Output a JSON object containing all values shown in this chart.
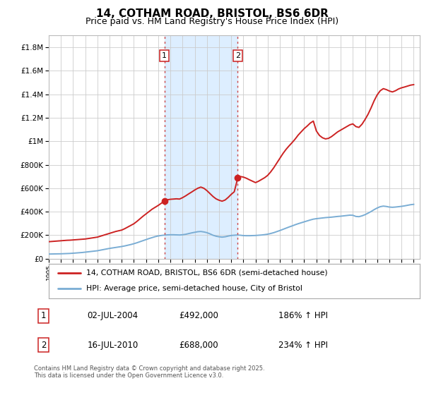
{
  "title": "14, COTHAM ROAD, BRISTOL, BS6 6DR",
  "subtitle": "Price paid vs. HM Land Registry's House Price Index (HPI)",
  "title_fontsize": 11,
  "subtitle_fontsize": 9,
  "ylim": [
    0,
    1900000
  ],
  "yticks": [
    0,
    200000,
    400000,
    600000,
    800000,
    1000000,
    1200000,
    1400000,
    1600000,
    1800000
  ],
  "ytick_labels": [
    "£0",
    "£200K",
    "£400K",
    "£600K",
    "£800K",
    "£1M",
    "£1.2M",
    "£1.4M",
    "£1.6M",
    "£1.8M"
  ],
  "xlim_start": 1995.0,
  "xlim_end": 2025.5,
  "grid_color": "#cccccc",
  "sale1_x": 2004.5,
  "sale1_y": 492000,
  "sale2_x": 2010.54,
  "sale2_y": 688000,
  "sale1_label": "1",
  "sale2_label": "2",
  "shaded_region_color": "#ddeeff",
  "vline_color": "#cc4444",
  "property_line_color": "#cc2222",
  "hpi_line_color": "#7aadd4",
  "legend_label_property": "14, COTHAM ROAD, BRISTOL, BS6 6DR (semi-detached house)",
  "legend_label_hpi": "HPI: Average price, semi-detached house, City of Bristol",
  "table_row1": [
    "1",
    "02-JUL-2004",
    "£492,000",
    "186% ↑ HPI"
  ],
  "table_row2": [
    "2",
    "16-JUL-2010",
    "£688,000",
    "234% ↑ HPI"
  ],
  "footnote": "Contains HM Land Registry data © Crown copyright and database right 2025.\nThis data is licensed under the Open Government Licence v3.0.",
  "hpi_data_x": [
    1995.0,
    1995.25,
    1995.5,
    1995.75,
    1996.0,
    1996.25,
    1996.5,
    1996.75,
    1997.0,
    1997.25,
    1997.5,
    1997.75,
    1998.0,
    1998.25,
    1998.5,
    1998.75,
    1999.0,
    1999.25,
    1999.5,
    1999.75,
    2000.0,
    2000.25,
    2000.5,
    2000.75,
    2001.0,
    2001.25,
    2001.5,
    2001.75,
    2002.0,
    2002.25,
    2002.5,
    2002.75,
    2003.0,
    2003.25,
    2003.5,
    2003.75,
    2004.0,
    2004.25,
    2004.5,
    2004.75,
    2005.0,
    2005.25,
    2005.5,
    2005.75,
    2006.0,
    2006.25,
    2006.5,
    2006.75,
    2007.0,
    2007.25,
    2007.5,
    2007.75,
    2008.0,
    2008.25,
    2008.5,
    2008.75,
    2009.0,
    2009.25,
    2009.5,
    2009.75,
    2010.0,
    2010.25,
    2010.5,
    2010.75,
    2011.0,
    2011.25,
    2011.5,
    2011.75,
    2012.0,
    2012.25,
    2012.5,
    2012.75,
    2013.0,
    2013.25,
    2013.5,
    2013.75,
    2014.0,
    2014.25,
    2014.5,
    2014.75,
    2015.0,
    2015.25,
    2015.5,
    2015.75,
    2016.0,
    2016.25,
    2016.5,
    2016.75,
    2017.0,
    2017.25,
    2017.5,
    2017.75,
    2018.0,
    2018.25,
    2018.5,
    2018.75,
    2019.0,
    2019.25,
    2019.5,
    2019.75,
    2020.0,
    2020.25,
    2020.5,
    2020.75,
    2021.0,
    2021.25,
    2021.5,
    2021.75,
    2022.0,
    2022.25,
    2022.5,
    2022.75,
    2023.0,
    2023.25,
    2023.5,
    2023.75,
    2024.0,
    2024.25,
    2024.5,
    2024.75,
    2025.0
  ],
  "hpi_data_y": [
    40000,
    40500,
    41000,
    41500,
    42000,
    43000,
    44000,
    45000,
    47000,
    49000,
    51000,
    53000,
    56000,
    59000,
    62000,
    65000,
    68000,
    73000,
    78000,
    83000,
    88000,
    92000,
    96000,
    100000,
    104000,
    109000,
    115000,
    121000,
    128000,
    136000,
    145000,
    154000,
    163000,
    172000,
    180000,
    188000,
    194000,
    198000,
    201000,
    203000,
    204000,
    204000,
    203000,
    202000,
    204000,
    208000,
    214000,
    220000,
    225000,
    230000,
    232000,
    228000,
    222000,
    212000,
    200000,
    192000,
    187000,
    184000,
    187000,
    193000,
    198000,
    200000,
    202000,
    200000,
    197000,
    196000,
    196000,
    197000,
    198000,
    200000,
    202000,
    205000,
    209000,
    215000,
    222000,
    231000,
    240000,
    250000,
    260000,
    270000,
    279000,
    289000,
    298000,
    306000,
    314000,
    322000,
    330000,
    337000,
    341000,
    344000,
    347000,
    350000,
    352000,
    354000,
    357000,
    360000,
    362000,
    365000,
    368000,
    371000,
    370000,
    360000,
    358000,
    365000,
    375000,
    388000,
    402000,
    418000,
    432000,
    443000,
    448000,
    445000,
    440000,
    438000,
    440000,
    443000,
    446000,
    450000,
    455000,
    460000,
    463000
  ],
  "prop_data_x": [
    1995.0,
    1995.25,
    1995.5,
    1995.75,
    1996.0,
    1996.25,
    1996.5,
    1996.75,
    1997.0,
    1997.25,
    1997.5,
    1997.75,
    1998.0,
    1998.25,
    1998.5,
    1998.75,
    1999.0,
    1999.25,
    1999.5,
    1999.75,
    2000.0,
    2000.25,
    2000.5,
    2000.75,
    2001.0,
    2001.25,
    2001.5,
    2001.75,
    2002.0,
    2002.25,
    2002.5,
    2002.75,
    2003.0,
    2003.25,
    2003.5,
    2003.75,
    2004.0,
    2004.25,
    2004.5,
    2004.75,
    2005.0,
    2005.25,
    2005.5,
    2005.75,
    2006.0,
    2006.25,
    2006.5,
    2006.75,
    2007.0,
    2007.25,
    2007.5,
    2007.75,
    2008.0,
    2008.25,
    2008.5,
    2008.75,
    2009.0,
    2009.25,
    2009.5,
    2009.75,
    2010.0,
    2010.25,
    2010.54,
    2010.75,
    2011.0,
    2011.25,
    2011.5,
    2011.75,
    2012.0,
    2012.25,
    2012.5,
    2012.75,
    2013.0,
    2013.25,
    2013.5,
    2013.75,
    2014.0,
    2014.25,
    2014.5,
    2014.75,
    2015.0,
    2015.25,
    2015.5,
    2015.75,
    2016.0,
    2016.25,
    2016.5,
    2016.75,
    2017.0,
    2017.25,
    2017.5,
    2017.75,
    2018.0,
    2018.25,
    2018.5,
    2018.75,
    2019.0,
    2019.25,
    2019.5,
    2019.75,
    2020.0,
    2020.25,
    2020.5,
    2020.75,
    2021.0,
    2021.25,
    2021.5,
    2021.75,
    2022.0,
    2022.25,
    2022.5,
    2022.75,
    2023.0,
    2023.25,
    2023.5,
    2023.75,
    2024.0,
    2024.25,
    2024.5,
    2024.75,
    2025.0
  ],
  "prop_data_y": [
    145000,
    147000,
    149000,
    151000,
    153000,
    155000,
    157000,
    158000,
    160000,
    162000,
    164000,
    166000,
    168000,
    172000,
    176000,
    180000,
    184000,
    192000,
    200000,
    208000,
    216000,
    224000,
    232000,
    238000,
    244000,
    256000,
    270000,
    284000,
    298000,
    318000,
    340000,
    362000,
    382000,
    402000,
    422000,
    438000,
    454000,
    472000,
    492000,
    502000,
    506000,
    508000,
    510000,
    508000,
    520000,
    535000,
    552000,
    568000,
    585000,
    600000,
    610000,
    600000,
    580000,
    555000,
    530000,
    510000,
    498000,
    490000,
    500000,
    522000,
    548000,
    570000,
    688000,
    700000,
    695000,
    685000,
    672000,
    660000,
    648000,
    660000,
    675000,
    690000,
    710000,
    740000,
    775000,
    815000,
    855000,
    895000,
    930000,
    960000,
    988000,
    1018000,
    1052000,
    1080000,
    1108000,
    1130000,
    1155000,
    1172000,
    1088000,
    1050000,
    1030000,
    1020000,
    1025000,
    1040000,
    1060000,
    1080000,
    1095000,
    1110000,
    1125000,
    1140000,
    1148000,
    1125000,
    1118000,
    1145000,
    1185000,
    1230000,
    1285000,
    1345000,
    1395000,
    1430000,
    1448000,
    1440000,
    1428000,
    1420000,
    1430000,
    1445000,
    1455000,
    1462000,
    1470000,
    1478000,
    1482000
  ]
}
